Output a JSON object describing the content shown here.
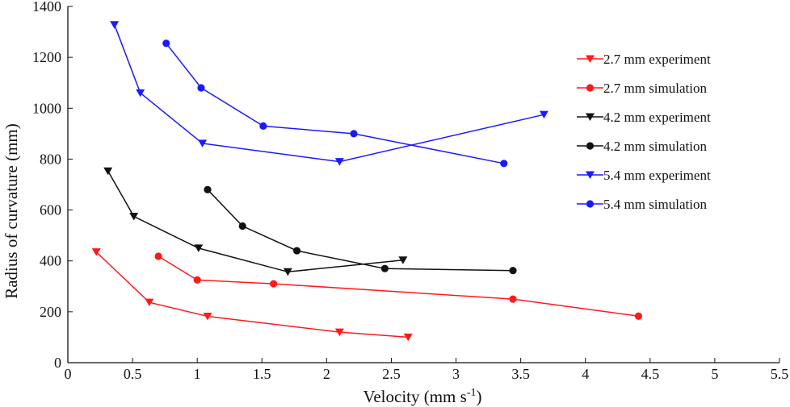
{
  "chart_data": {
    "type": "line",
    "xlabel": "Velocity (mm s",
    "xlabel_sup": "-1",
    "xlabel_close": ")",
    "ylabel": "Radius of curvature (mm)",
    "xlim": [
      0,
      5.5
    ],
    "ylim": [
      0,
      1400
    ],
    "xticks": [
      0,
      0.5,
      1,
      1.5,
      2,
      2.5,
      3,
      3.5,
      4,
      4.5,
      5,
      5.5
    ],
    "xtick_labels": [
      "0",
      "0.5",
      "1",
      "1.5",
      "2",
      "2.5",
      "3",
      "3.5",
      "4",
      "4.5",
      "5",
      "5.5"
    ],
    "yticks": [
      0,
      200,
      400,
      600,
      800,
      1000,
      1200,
      1400
    ],
    "ytick_labels": [
      "0",
      "200",
      "400",
      "600",
      "800",
      "1000",
      "1200",
      "1400"
    ],
    "grid": false,
    "legend_position": "right",
    "series": [
      {
        "name": "2.7 mm experiment",
        "color": "#ff1a1a",
        "marker": "triangle-down",
        "points": [
          [
            0.22,
            435
          ],
          [
            0.63,
            237
          ],
          [
            1.08,
            182
          ],
          [
            2.1,
            120
          ],
          [
            2.63,
            100
          ]
        ]
      },
      {
        "name": "2.7 mm simulation",
        "color": "#ff1a1a",
        "marker": "circle",
        "points": [
          [
            0.7,
            418
          ],
          [
            1.0,
            325
          ],
          [
            1.59,
            310
          ],
          [
            3.44,
            250
          ],
          [
            4.41,
            183
          ]
        ]
      },
      {
        "name": "4.2 mm experiment",
        "color": "#111111",
        "marker": "triangle-down",
        "points": [
          [
            0.31,
            753
          ],
          [
            0.51,
            575
          ],
          [
            1.01,
            450
          ],
          [
            1.7,
            357
          ],
          [
            2.59,
            403
          ]
        ]
      },
      {
        "name": "4.2 mm simulation",
        "color": "#111111",
        "marker": "circle",
        "points": [
          [
            1.08,
            680
          ],
          [
            1.35,
            537
          ],
          [
            1.77,
            440
          ],
          [
            2.45,
            370
          ],
          [
            3.44,
            362
          ]
        ]
      },
      {
        "name": "5.4 mm experiment",
        "color": "#1a1aff",
        "marker": "triangle-down",
        "points": [
          [
            0.36,
            1328
          ],
          [
            0.56,
            1060
          ],
          [
            1.04,
            862
          ],
          [
            2.1,
            790
          ],
          [
            3.68,
            975
          ]
        ]
      },
      {
        "name": "5.4 mm simulation",
        "color": "#1a1aff",
        "marker": "circle",
        "points": [
          [
            0.76,
            1255
          ],
          [
            1.03,
            1080
          ],
          [
            1.51,
            930
          ],
          [
            2.21,
            900
          ],
          [
            3.37,
            783
          ]
        ]
      }
    ]
  }
}
